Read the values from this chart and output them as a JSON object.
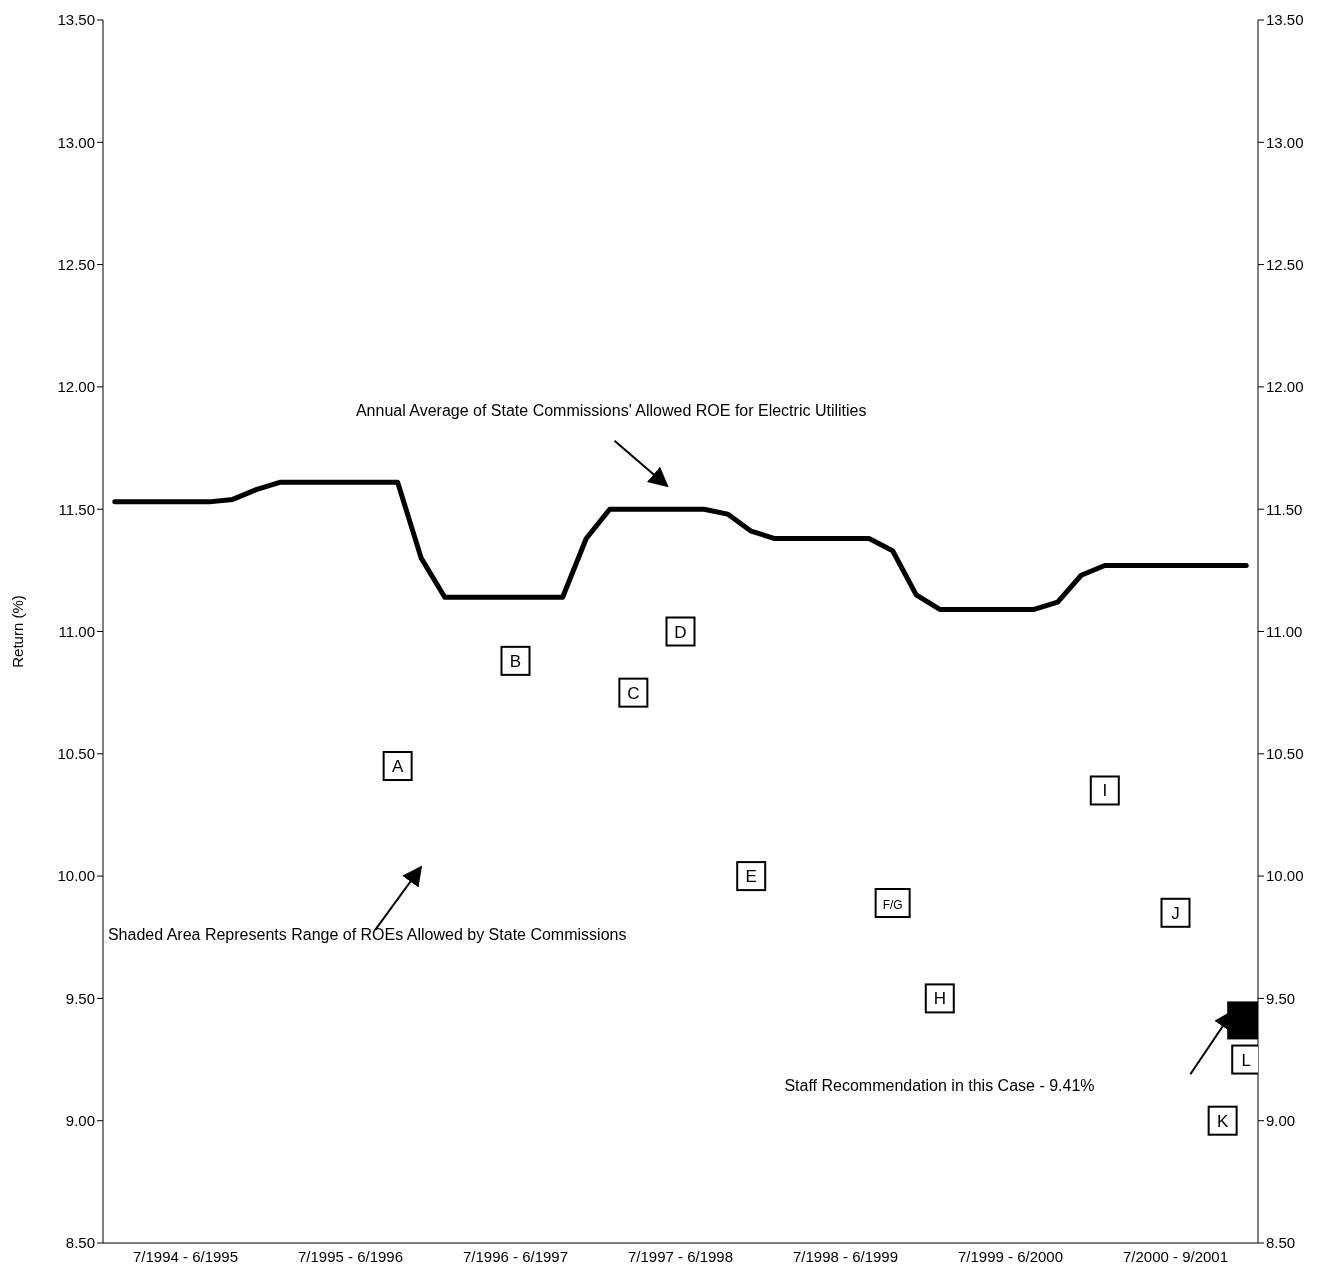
{
  "chart_data": {
    "type": "line",
    "ylabel": "Return (%)",
    "categories": [
      null,
      null,
      null,
      "7/1994 - 6/1995",
      null,
      null,
      null,
      null,
      null,
      null,
      "7/1995 - 6/1996",
      null,
      null,
      null,
      null,
      null,
      null,
      "7/1996 - 6/1997",
      null,
      null,
      null,
      null,
      null,
      null,
      "7/1997 - 6/1998",
      null,
      null,
      null,
      null,
      null,
      null,
      "7/1998 - 6/1999",
      null,
      null,
      null,
      null,
      null,
      null,
      "7/1999 - 6/2000",
      null,
      null,
      null,
      null,
      null,
      null,
      "7/2000 - 9/2001",
      null,
      null,
      null
    ],
    "ylim": [
      8.5,
      13.5
    ],
    "yticks": [
      {
        "value": 8.5,
        "label": "8.50"
      },
      {
        "value": 9,
        "label": "9.00"
      },
      {
        "value": 9.5,
        "label": "9.50"
      },
      {
        "value": 10,
        "label": "10.00"
      },
      {
        "value": 10.5,
        "label": "10.50"
      },
      {
        "value": 11,
        "label": "11.00"
      },
      {
        "value": 11.5,
        "label": "11.50"
      },
      {
        "value": 12,
        "label": "12.00"
      },
      {
        "value": 12.5,
        "label": "12.50"
      },
      {
        "value": 13,
        "label": "13.00"
      },
      {
        "value": 13.5,
        "label": "13.50"
      }
    ],
    "y2lim": [
      8.5,
      13.5
    ],
    "y2ticks": [
      {
        "value": 8.5,
        "label": "8.50"
      },
      {
        "value": 9,
        "label": "9.00"
      },
      {
        "value": 9.5,
        "label": "9.50"
      },
      {
        "value": 10,
        "label": "10.00"
      },
      {
        "value": 10.5,
        "label": "10.50"
      },
      {
        "value": 11,
        "label": "11.00"
      },
      {
        "value": 11.5,
        "label": "11.50"
      },
      {
        "value": 12,
        "label": "12.00"
      },
      {
        "value": 12.5,
        "label": "12.50"
      },
      {
        "value": 13,
        "label": "13.00"
      },
      {
        "value": 13.5,
        "label": "13.50"
      }
    ],
    "grid": false,
    "legend": false,
    "series": [
      {
        "color": "#000000",
        "line_style": "solid",
        "marker": "none",
        "values": [
          11.53,
          11.53,
          11.53,
          11.53,
          11.53,
          11.54,
          11.58,
          11.61,
          11.61,
          11.61,
          11.61,
          11.61,
          11.61,
          11.3,
          11.14,
          11.14,
          11.14,
          11.14,
          11.14,
          11.14,
          11.38,
          11.5,
          11.5,
          11.5,
          11.5,
          11.5,
          11.48,
          11.41,
          11.38,
          11.38,
          11.38,
          11.38,
          11.38,
          11.33,
          11.15,
          11.09,
          11.09,
          11.09,
          11.09,
          11.09,
          11.12,
          11.23,
          11.27,
          11.27,
          11.27,
          11.27,
          11.27,
          11.27,
          11.27
        ]
      },
      {
        "type": "scatter",
        "color": "#000000",
        "marker": "square",
        "values": [
          null,
          null,
          null,
          null,
          null,
          null,
          null,
          null,
          null,
          null,
          null,
          null,
          null,
          null,
          null,
          null,
          null,
          null,
          null,
          null,
          null,
          null,
          null,
          null,
          null,
          null,
          null,
          null,
          null,
          null,
          null,
          null,
          null,
          null,
          null,
          null,
          null,
          null,
          null,
          null,
          null,
          null,
          null,
          null,
          null,
          null,
          null,
          null,
          9.41
        ]
      },
      {
        "type": "scatter",
        "color": "#000000",
        "marker": "square",
        "values": [
          null,
          null,
          null,
          null,
          null,
          null,
          null,
          null,
          null,
          null,
          null,
          null,
          10.45,
          null,
          null,
          null,
          null,
          10.88,
          null,
          null,
          null,
          null,
          10.75,
          null,
          11.0,
          null,
          null,
          10.0,
          null,
          null,
          null,
          null,
          null,
          9.89,
          null,
          9.5,
          null,
          null,
          null,
          null,
          null,
          null,
          10.35,
          null,
          null,
          9.85,
          null,
          9.0,
          9.25
        ],
        "value_labels": [
          null,
          null,
          null,
          null,
          null,
          null,
          null,
          null,
          null,
          null,
          null,
          null,
          "A",
          null,
          null,
          null,
          null,
          "B",
          null,
          null,
          null,
          null,
          "C",
          null,
          "D",
          null,
          null,
          "E",
          null,
          null,
          null,
          null,
          null,
          "F/G",
          null,
          "H",
          null,
          null,
          null,
          null,
          null,
          null,
          "I",
          null,
          null,
          "J",
          null,
          "K",
          "L"
        ]
      }
    ],
    "annotations": [
      "Annual Average of State Commissions' Allowed ROE for Electric Utilities",
      "Shaded Area Represents Range of ROEs Allowed by State Commissions",
      "Staff Recommendation in this Case - 9.41%"
    ]
  }
}
